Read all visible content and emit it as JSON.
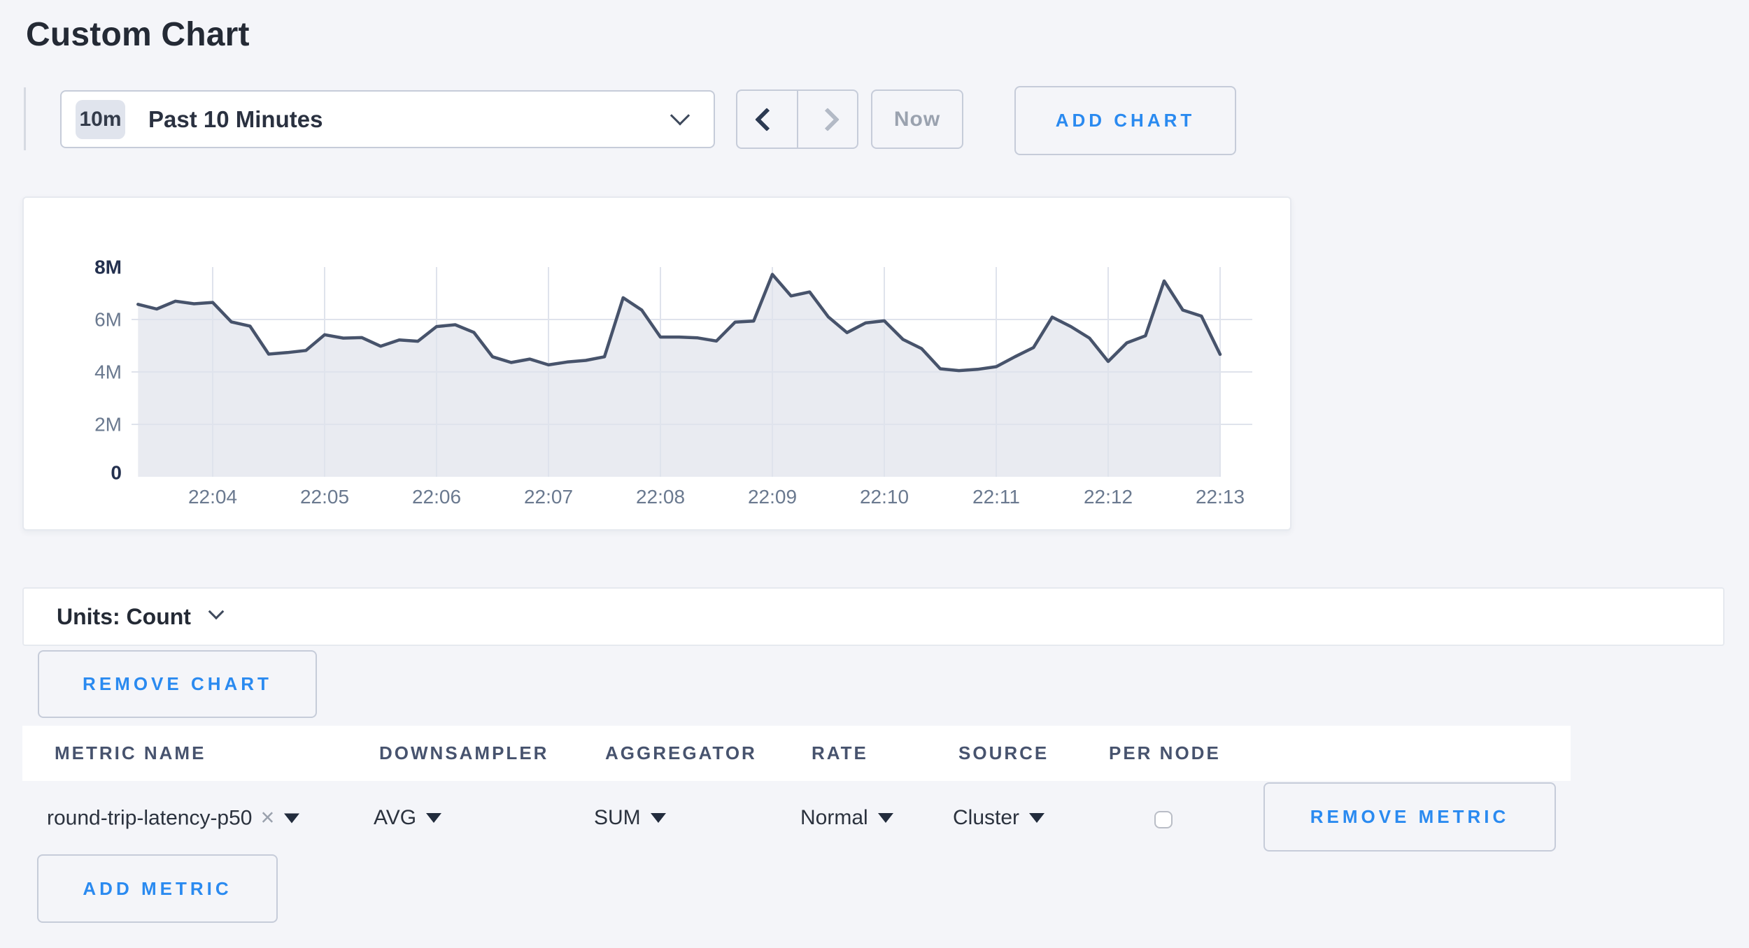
{
  "page": {
    "title": "Custom Chart"
  },
  "toolbar": {
    "range_badge": "10m",
    "range_label": "Past 10 Minutes",
    "now_label": "Now",
    "add_chart_label": "ADD CHART"
  },
  "units_bar": {
    "label": "Units: Count"
  },
  "chart_actions": {
    "remove_chart_label": "REMOVE CHART"
  },
  "metrics_table": {
    "headers": [
      "METRIC NAME",
      "DOWNSAMPLER",
      "AGGREGATOR",
      "RATE",
      "SOURCE",
      "PER NODE"
    ],
    "rows": [
      {
        "metric_name": "round-trip-latency-p50",
        "clear_icon": "×",
        "downsampler": "AVG",
        "aggregator": "SUM",
        "rate": "Normal",
        "source": "Cluster",
        "per_node_checked": false,
        "remove_label": "REMOVE METRIC"
      }
    ],
    "add_metric_label": "ADD METRIC"
  },
  "chart_data": {
    "type": "area",
    "title": "",
    "x_ticks": [
      "22:04",
      "22:05",
      "22:06",
      "22:07",
      "22:08",
      "22:09",
      "22:10",
      "22:11",
      "22:12",
      "22:13"
    ],
    "y_ticks": [
      "0",
      "2M",
      "4M",
      "6M",
      "8M"
    ],
    "y_tick_values_millions": [
      0,
      2,
      4,
      6,
      8
    ],
    "y_max_millions": 8,
    "ylim": [
      0,
      8000000
    ],
    "start_time": "22:03:20",
    "interval_seconds": 10,
    "first_tick_point_index": 4,
    "points_per_tick": 6,
    "grid": true,
    "legend": "none",
    "values_millions": [
      6.58,
      6.4,
      6.7,
      6.6,
      6.65,
      5.91,
      5.75,
      4.68,
      4.74,
      4.82,
      5.42,
      5.29,
      5.31,
      4.98,
      5.22,
      5.17,
      5.73,
      5.8,
      5.51,
      4.58,
      4.36,
      4.49,
      4.27,
      4.38,
      4.44,
      4.58,
      6.83,
      6.36,
      5.33,
      5.33,
      5.3,
      5.18,
      5.9,
      5.94,
      7.72,
      6.9,
      7.05,
      6.1,
      5.5,
      5.87,
      5.95,
      5.24,
      4.89,
      4.12,
      4.05,
      4.1,
      4.2,
      4.58,
      4.93,
      6.09,
      5.73,
      5.29,
      4.4,
      5.11,
      5.38,
      7.47,
      6.36,
      6.13,
      4.67
    ],
    "line_color": "#47536b",
    "fill_color": "#e9ebf1",
    "grid_color": "#dfe3ec",
    "tick_text_color": "#6a798f",
    "tick_text_strong_color": "#23304e"
  },
  "colors": {
    "accent_blue": "#2a8af0",
    "page_background": "#f4f5f9",
    "dark_text": "#242a35",
    "muted_text": "#9aa2af",
    "header_text": "#47536e",
    "control_border": "#c6ccd9",
    "card_border": "#e6e9ef"
  }
}
